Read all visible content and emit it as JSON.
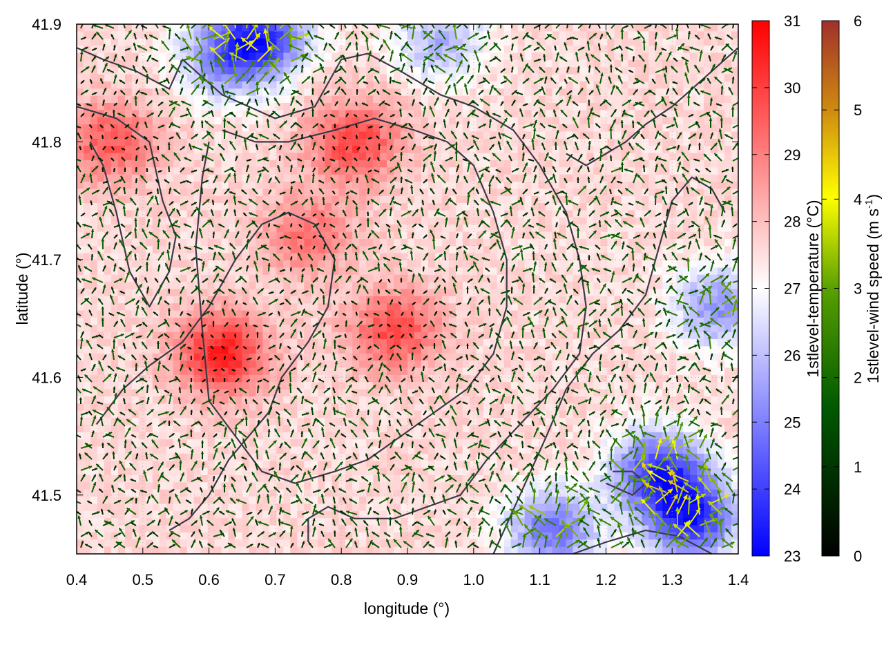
{
  "chart_data": {
    "type": "heatmap",
    "title": "",
    "xlabel": "longitude (°)",
    "ylabel": "latitude (°)",
    "xlim": [
      0.4,
      1.4
    ],
    "ylim": [
      41.45,
      41.9
    ],
    "x_ticks": [
      "0.4",
      "0.5",
      "0.6",
      "0.7",
      "0.8",
      "0.9",
      "1.0",
      "1.1",
      "1.2",
      "1.3",
      "1.4"
    ],
    "x_tick_values": [
      0.4,
      0.5,
      0.6,
      0.7,
      0.8,
      0.9,
      1.0,
      1.1,
      1.2,
      1.3,
      1.4
    ],
    "y_ticks": [
      "41.5",
      "41.6",
      "41.7",
      "41.8",
      "41.9"
    ],
    "y_tick_values": [
      41.5,
      41.6,
      41.7,
      41.8,
      41.9
    ],
    "grid": true,
    "colorbars": [
      {
        "label_main": "1stlevel-temperature (°C)",
        "label_sup": "",
        "label_end": "",
        "range": [
          23,
          31
        ],
        "ticks": [
          "23",
          "24",
          "25",
          "26",
          "27",
          "28",
          "29",
          "30",
          "31"
        ],
        "tick_values": [
          23,
          24,
          25,
          26,
          27,
          28,
          29,
          30,
          31
        ],
        "colors": [
          "#0000ff",
          "#ffffff",
          "#ff0000"
        ]
      },
      {
        "label_main": "1stlevel-wind speed (m s",
        "label_sup": "-1",
        "label_end": ")",
        "range": [
          0,
          6
        ],
        "ticks": [
          "0",
          "1",
          "2",
          "3",
          "4",
          "5",
          "6"
        ],
        "tick_values": [
          0,
          1,
          2,
          3,
          4,
          5,
          6
        ],
        "colors": [
          "#000000",
          "#006400",
          "#80b000",
          "#ffff00",
          "#d08c10",
          "#a0302a"
        ]
      }
    ],
    "temperature_field": {
      "baseline": 27.6,
      "features": [
        {
          "lon": 0.62,
          "lat": 41.62,
          "value": 30.5
        },
        {
          "lon": 0.82,
          "lat": 41.8,
          "value": 30.0
        },
        {
          "lon": 0.88,
          "lat": 41.64,
          "value": 29.8
        },
        {
          "lon": 0.45,
          "lat": 41.8,
          "value": 29.6
        },
        {
          "lon": 0.75,
          "lat": 41.72,
          "value": 29.2
        },
        {
          "lon": 0.68,
          "lat": 41.89,
          "value": 24.0
        },
        {
          "lon": 0.62,
          "lat": 41.87,
          "value": 25.5
        },
        {
          "lon": 1.28,
          "lat": 41.52,
          "value": 24.0
        },
        {
          "lon": 1.33,
          "lat": 41.48,
          "value": 23.8
        },
        {
          "lon": 1.37,
          "lat": 41.66,
          "value": 25.3
        },
        {
          "lon": 0.95,
          "lat": 41.885,
          "value": 25.8
        },
        {
          "lon": 1.12,
          "lat": 41.47,
          "value": 24.8
        }
      ]
    },
    "wind_field": {
      "mean_speed_ms": 1.6,
      "max_speed_ms": 4.5
    },
    "contour_lines": [
      [
        [
          0.4,
          41.88
        ],
        [
          0.44,
          41.87
        ],
        [
          0.49,
          41.86
        ],
        [
          0.54,
          41.845
        ],
        [
          0.56,
          41.87
        ],
        [
          0.62,
          41.84
        ],
        [
          0.7,
          41.82
        ],
        [
          0.76,
          41.83
        ],
        [
          0.8,
          41.87
        ],
        [
          0.84,
          41.875
        ],
        [
          0.89,
          41.86
        ],
        [
          0.95,
          41.84
        ],
        [
          1.0,
          41.83
        ],
        [
          1.06,
          41.81
        ],
        [
          1.1,
          41.78
        ],
        [
          1.14,
          41.74
        ],
        [
          1.16,
          41.7
        ],
        [
          1.17,
          41.66
        ],
        [
          1.16,
          41.62
        ],
        [
          1.12,
          41.59
        ],
        [
          1.07,
          41.56
        ],
        [
          1.02,
          41.53
        ],
        [
          0.98,
          41.5
        ],
        [
          0.93,
          41.49
        ],
        [
          0.88,
          41.48
        ],
        [
          0.82,
          41.48
        ],
        [
          0.78,
          41.49
        ],
        [
          0.75,
          41.48
        ],
        [
          0.75,
          41.46
        ]
      ],
      [
        [
          0.4,
          41.83
        ],
        [
          0.46,
          41.82
        ],
        [
          0.51,
          41.8
        ],
        [
          0.53,
          41.75
        ],
        [
          0.55,
          41.72
        ],
        [
          0.54,
          41.69
        ],
        [
          0.51,
          41.66
        ],
        [
          0.48,
          41.69
        ],
        [
          0.46,
          41.74
        ],
        [
          0.44,
          41.78
        ],
        [
          0.42,
          41.8
        ]
      ],
      [
        [
          0.43,
          41.56
        ],
        [
          0.47,
          41.59
        ],
        [
          0.51,
          41.61
        ],
        [
          0.56,
          41.63
        ],
        [
          0.6,
          41.66
        ],
        [
          0.64,
          41.7
        ],
        [
          0.68,
          41.73
        ],
        [
          0.72,
          41.74
        ],
        [
          0.76,
          41.73
        ],
        [
          0.79,
          41.7
        ],
        [
          0.78,
          41.66
        ],
        [
          0.75,
          41.63
        ],
        [
          0.71,
          41.6
        ],
        [
          0.69,
          41.57
        ],
        [
          0.66,
          41.55
        ],
        [
          0.63,
          41.53
        ],
        [
          0.6,
          41.5
        ],
        [
          0.57,
          41.48
        ],
        [
          0.54,
          41.47
        ]
      ],
      [
        [
          0.62,
          41.81
        ],
        [
          0.67,
          41.8
        ],
        [
          0.72,
          41.8
        ],
        [
          0.79,
          41.81
        ],
        [
          0.85,
          41.82
        ],
        [
          0.91,
          41.81
        ],
        [
          0.96,
          41.8
        ],
        [
          1.0,
          41.78
        ],
        [
          1.03,
          41.74
        ],
        [
          1.05,
          41.7
        ],
        [
          1.05,
          41.66
        ],
        [
          1.03,
          41.62
        ],
        [
          0.99,
          41.59
        ],
        [
          0.94,
          41.57
        ],
        [
          0.89,
          41.55
        ],
        [
          0.84,
          41.53
        ],
        [
          0.79,
          41.52
        ],
        [
          0.73,
          41.51
        ],
        [
          0.68,
          41.52
        ],
        [
          0.64,
          41.55
        ],
        [
          0.6,
          41.58
        ],
        [
          0.59,
          41.64
        ],
        [
          0.58,
          41.71
        ],
        [
          0.59,
          41.77
        ],
        [
          0.6,
          41.8
        ]
      ],
      [
        [
          1.03,
          41.45
        ],
        [
          1.07,
          41.5
        ],
        [
          1.11,
          41.55
        ],
        [
          1.14,
          41.59
        ],
        [
          1.18,
          41.62
        ],
        [
          1.22,
          41.64
        ],
        [
          1.26,
          41.67
        ],
        [
          1.28,
          41.71
        ],
        [
          1.3,
          41.75
        ],
        [
          1.33,
          41.77
        ],
        [
          1.36,
          41.76
        ],
        [
          1.38,
          41.74
        ]
      ],
      [
        [
          1.2,
          41.51
        ],
        [
          1.24,
          41.5
        ],
        [
          1.26,
          41.51
        ],
        [
          1.24,
          41.52
        ],
        [
          1.21,
          41.52
        ]
      ],
      [
        [
          1.15,
          41.45
        ],
        [
          1.2,
          41.46
        ],
        [
          1.26,
          41.47
        ],
        [
          1.31,
          41.465
        ],
        [
          1.36,
          41.45
        ]
      ],
      [
        [
          1.14,
          41.79
        ],
        [
          1.17,
          41.78
        ],
        [
          1.2,
          41.79
        ],
        [
          1.23,
          41.8
        ],
        [
          1.26,
          41.815
        ],
        [
          1.3,
          41.83
        ],
        [
          1.34,
          41.85
        ],
        [
          1.38,
          41.87
        ],
        [
          1.4,
          41.88
        ]
      ]
    ]
  }
}
